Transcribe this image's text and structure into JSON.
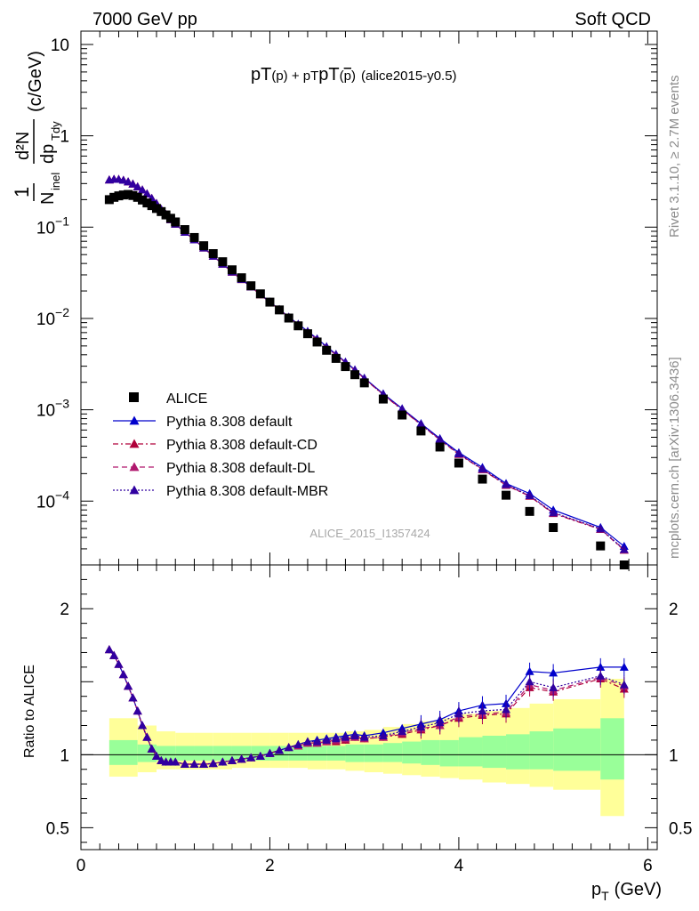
{
  "header": {
    "left": "7000 GeV pp",
    "right": "Soft QCD"
  },
  "plot_title": {
    "pt1": "pT",
    "p1": "(p)",
    "plus": " + pT",
    "p2": "(",
    "pbar": "p",
    "p3": ")",
    "tag": "(alice2015-y0.5)"
  },
  "side_labels": {
    "rivet": "Rivet 3.1.10, ≥ 2.7M events",
    "mcplots": "mcplots.cern.ch [arXiv:1306.3436]"
  },
  "analysis_tag": "ALICE_2015_I1357424",
  "yaxis_main": {
    "one": "1",
    "num": "d²N",
    "den_pre": "N",
    "den_sub": "inel",
    "den_mid": "dp",
    "den_sub2": "Tdy",
    "unit": "(c/GeV)"
  },
  "yaxis_ratio": "Ratio to ALICE",
  "xaxis": {
    "label": "p",
    "sub": "T",
    "unit": "(GeV)"
  },
  "chart_data": [
    {
      "type": "scatter",
      "title": "pT(p) + pT(p̄) (alice2015-y0.5)",
      "xlabel": "pT (GeV)",
      "ylabel": "1/Ninel d²N/dpTdy (c/GeV)",
      "yscale": "log",
      "xlim": [
        0,
        6.1
      ],
      "ylim": [
        2e-05,
        14
      ],
      "x_ticks": [
        "0",
        "2",
        "4",
        "6"
      ],
      "y_ticks": [
        "10",
        "1",
        "10⁻¹",
        "10⁻²",
        "10⁻³",
        "10⁻⁴"
      ],
      "legend_position": "bottom-left",
      "x": [
        0.3,
        0.35,
        0.4,
        0.45,
        0.5,
        0.55,
        0.6,
        0.65,
        0.7,
        0.75,
        0.8,
        0.85,
        0.9,
        0.95,
        1.0,
        1.1,
        1.2,
        1.3,
        1.4,
        1.5,
        1.6,
        1.7,
        1.8,
        1.9,
        2.0,
        2.1,
        2.2,
        2.3,
        2.4,
        2.5,
        2.6,
        2.7,
        2.8,
        2.9,
        3.0,
        3.2,
        3.4,
        3.6,
        3.8,
        4.0,
        4.25,
        4.5,
        4.75,
        5.0,
        5.5,
        6.0
      ],
      "series": [
        {
          "name": "ALICE",
          "color": "#000000",
          "marker": "square",
          "line": "none",
          "values": [
            0.2,
            0.212,
            0.22,
            0.225,
            0.228,
            0.222,
            0.212,
            0.198,
            0.184,
            0.172,
            0.16,
            0.148,
            0.136,
            0.125,
            0.114,
            0.094,
            0.077,
            0.0626,
            0.0513,
            0.0418,
            0.0341,
            0.0279,
            0.0228,
            0.0186,
            0.0151,
            0.0124,
            0.0101,
            0.0083,
            0.0068,
            0.00552,
            0.00448,
            0.00365,
            0.00297,
            0.00242,
            0.00197,
            0.00131,
            0.000876,
            0.000586,
            0.000391,
            0.000261,
            0.000174,
            0.000116,
            7.71e-05,
            5.13e-05,
            3.23e-05,
            2e-05
          ]
        },
        {
          "name": "Pythia 8.308 default",
          "color": "#0000cc",
          "marker": "triangle",
          "line": "solid",
          "values": [
            0.33,
            0.335,
            0.334,
            0.327,
            0.314,
            0.297,
            0.277,
            0.256,
            0.232,
            0.207,
            0.182,
            0.157,
            0.138,
            0.121,
            0.108,
            0.088,
            0.0728,
            0.0595,
            0.0482,
            0.0397,
            0.0327,
            0.0271,
            0.0224,
            0.0184,
            0.0152,
            0.0126,
            0.0104,
            0.00869,
            0.00725,
            0.00602,
            0.00493,
            0.00406,
            0.00335,
            0.00275,
            0.00223,
            0.0015,
            0.00103,
            0.000707,
            0.000485,
            0.00034,
            0.000234,
            0.000156,
            0.000121,
            8e-05,
            5.15e-05,
            3.2e-05
          ]
        },
        {
          "name": "Pythia 8.308 default-CD",
          "color": "#b0003a",
          "marker": "triangle",
          "line": "dashdot",
          "values": [
            0.33,
            0.335,
            0.334,
            0.327,
            0.314,
            0.297,
            0.277,
            0.256,
            0.232,
            0.207,
            0.182,
            0.157,
            0.138,
            0.121,
            0.108,
            0.088,
            0.0728,
            0.0592,
            0.048,
            0.0393,
            0.0322,
            0.0267,
            0.0222,
            0.0182,
            0.0151,
            0.0125,
            0.0103,
            0.00855,
            0.0071,
            0.0059,
            0.00483,
            0.00398,
            0.00328,
            0.0027,
            0.00219,
            0.00146,
            0.001,
            0.000686,
            0.000468,
            0.000325,
            0.000221,
            0.000149,
            0.000113,
            7.32e-05,
            4.9e-05,
            2.9e-05
          ]
        },
        {
          "name": "Pythia 8.308 default-DL",
          "color": "#b0186e",
          "marker": "triangle",
          "line": "dashed",
          "values": [
            0.33,
            0.335,
            0.334,
            0.327,
            0.314,
            0.297,
            0.277,
            0.256,
            0.232,
            0.207,
            0.182,
            0.157,
            0.138,
            0.121,
            0.108,
            0.088,
            0.0728,
            0.0592,
            0.048,
            0.0393,
            0.0322,
            0.0267,
            0.0222,
            0.0182,
            0.0151,
            0.0125,
            0.0103,
            0.00855,
            0.00712,
            0.00592,
            0.00485,
            0.004,
            0.0033,
            0.00271,
            0.0022,
            0.00147,
            0.00101,
            0.00069,
            0.00047,
            0.000328,
            0.000223,
            0.00015,
            0.000114,
            7.4e-05,
            4.95e-05,
            2.93e-05
          ]
        },
        {
          "name": "Pythia 8.308 default-MBR",
          "color": "#3000a0",
          "marker": "triangle",
          "line": "dotted",
          "values": [
            0.33,
            0.335,
            0.334,
            0.327,
            0.314,
            0.297,
            0.277,
            0.256,
            0.232,
            0.207,
            0.182,
            0.157,
            0.138,
            0.121,
            0.108,
            0.088,
            0.0728,
            0.0593,
            0.0481,
            0.0394,
            0.0323,
            0.0268,
            0.0222,
            0.0183,
            0.0151,
            0.0125,
            0.0103,
            0.00858,
            0.00715,
            0.00594,
            0.00487,
            0.00401,
            0.00331,
            0.00272,
            0.00221,
            0.00148,
            0.00102,
            0.000695,
            0.000475,
            0.00033,
            0.000225,
            0.000152,
            0.000115,
            7.48e-05,
            4.98e-05,
            2.95e-05
          ]
        }
      ]
    },
    {
      "type": "scatter",
      "ylabel": "Ratio to ALICE",
      "xlabel": "pT (GeV)",
      "xlim": [
        0,
        6.1
      ],
      "ylim": [
        0.35,
        2.3
      ],
      "y_ticks": [
        "0.5",
        "1",
        "2"
      ],
      "x_ticks": [
        "0",
        "2",
        "4",
        "6"
      ],
      "x": [
        0.3,
        0.35,
        0.4,
        0.45,
        0.5,
        0.55,
        0.6,
        0.65,
        0.7,
        0.75,
        0.8,
        0.85,
        0.9,
        0.95,
        1.0,
        1.1,
        1.2,
        1.3,
        1.4,
        1.5,
        1.6,
        1.7,
        1.8,
        1.9,
        2.0,
        2.1,
        2.2,
        2.3,
        2.4,
        2.5,
        2.6,
        2.7,
        2.8,
        2.9,
        3.0,
        3.2,
        3.4,
        3.6,
        3.8,
        4.0,
        4.25,
        4.5,
        4.75,
        5.0,
        5.5,
        6.0
      ],
      "bands": {
        "bin_edges": [
          0.3,
          0.6,
          0.8,
          1.0,
          1.2,
          1.4,
          1.6,
          1.8,
          2.0,
          2.2,
          2.4,
          2.6,
          2.8,
          3.0,
          3.2,
          3.4,
          3.6,
          3.8,
          4.0,
          4.25,
          4.5,
          4.75,
          5.0,
          5.5,
          6.0
        ],
        "inner_stat_lo": [
          0.93,
          0.95,
          0.96,
          0.96,
          0.96,
          0.96,
          0.96,
          0.96,
          0.96,
          0.96,
          0.96,
          0.96,
          0.95,
          0.95,
          0.95,
          0.94,
          0.93,
          0.92,
          0.92,
          0.91,
          0.9,
          0.9,
          0.89,
          0.83
        ],
        "inner_stat_hi": [
          1.1,
          1.07,
          1.06,
          1.06,
          1.06,
          1.06,
          1.06,
          1.06,
          1.06,
          1.06,
          1.06,
          1.06,
          1.07,
          1.07,
          1.08,
          1.09,
          1.1,
          1.1,
          1.12,
          1.13,
          1.14,
          1.16,
          1.18,
          1.25
        ],
        "outer_sys_lo": [
          0.85,
          0.88,
          0.9,
          0.9,
          0.9,
          0.9,
          0.91,
          0.91,
          0.91,
          0.91,
          0.9,
          0.9,
          0.89,
          0.88,
          0.87,
          0.86,
          0.85,
          0.84,
          0.83,
          0.81,
          0.8,
          0.78,
          0.76,
          0.58
        ],
        "outer_sys_hi": [
          1.25,
          1.2,
          1.16,
          1.15,
          1.15,
          1.15,
          1.15,
          1.15,
          1.15,
          1.15,
          1.15,
          1.15,
          1.16,
          1.17,
          1.19,
          1.21,
          1.23,
          1.25,
          1.28,
          1.3,
          1.32,
          1.35,
          1.38,
          1.52
        ]
      },
      "series": [
        {
          "name": "Pythia 8.308 default",
          "color": "#0000cc",
          "values": [
            1.72,
            1.68,
            1.62,
            1.55,
            1.47,
            1.39,
            1.3,
            1.2,
            1.12,
            1.04,
            0.99,
            0.96,
            0.95,
            0.95,
            0.95,
            0.935,
            0.935,
            0.935,
            0.94,
            0.95,
            0.96,
            0.97,
            0.98,
            0.99,
            1.01,
            1.03,
            1.05,
            1.07,
            1.09,
            1.1,
            1.11,
            1.12,
            1.13,
            1.14,
            1.13,
            1.15,
            1.18,
            1.21,
            1.24,
            1.3,
            1.34,
            1.35,
            1.57,
            1.56,
            1.6,
            1.6
          ]
        },
        {
          "name": "Pythia 8.308 default-CD",
          "color": "#b0003a",
          "values": [
            1.72,
            1.68,
            1.62,
            1.55,
            1.47,
            1.39,
            1.3,
            1.2,
            1.12,
            1.04,
            0.99,
            0.96,
            0.95,
            0.95,
            0.95,
            0.935,
            0.935,
            0.935,
            0.94,
            0.95,
            0.96,
            0.97,
            0.98,
            0.99,
            1.01,
            1.03,
            1.05,
            1.06,
            1.08,
            1.08,
            1.09,
            1.09,
            1.1,
            1.12,
            1.11,
            1.12,
            1.14,
            1.17,
            1.2,
            1.25,
            1.27,
            1.28,
            1.46,
            1.43,
            1.52,
            1.45
          ]
        },
        {
          "name": "Pythia 8.308 default-DL",
          "color": "#b0186e",
          "values": [
            1.72,
            1.68,
            1.62,
            1.55,
            1.47,
            1.39,
            1.3,
            1.2,
            1.12,
            1.04,
            0.99,
            0.96,
            0.95,
            0.95,
            0.95,
            0.935,
            0.935,
            0.935,
            0.94,
            0.95,
            0.96,
            0.97,
            0.98,
            0.99,
            1.01,
            1.03,
            1.05,
            1.06,
            1.08,
            1.08,
            1.09,
            1.1,
            1.11,
            1.12,
            1.11,
            1.12,
            1.15,
            1.18,
            1.2,
            1.26,
            1.28,
            1.29,
            1.48,
            1.44,
            1.53,
            1.47
          ]
        },
        {
          "name": "Pythia 8.308 default-MBR",
          "color": "#3000a0",
          "values": [
            1.72,
            1.68,
            1.62,
            1.55,
            1.47,
            1.39,
            1.3,
            1.2,
            1.12,
            1.04,
            0.99,
            0.96,
            0.95,
            0.95,
            0.95,
            0.935,
            0.935,
            0.935,
            0.94,
            0.95,
            0.96,
            0.97,
            0.98,
            0.99,
            1.01,
            1.03,
            1.05,
            1.07,
            1.09,
            1.09,
            1.1,
            1.11,
            1.12,
            1.13,
            1.12,
            1.13,
            1.16,
            1.19,
            1.22,
            1.28,
            1.3,
            1.31,
            1.5,
            1.46,
            1.54,
            1.48
          ]
        }
      ]
    }
  ]
}
